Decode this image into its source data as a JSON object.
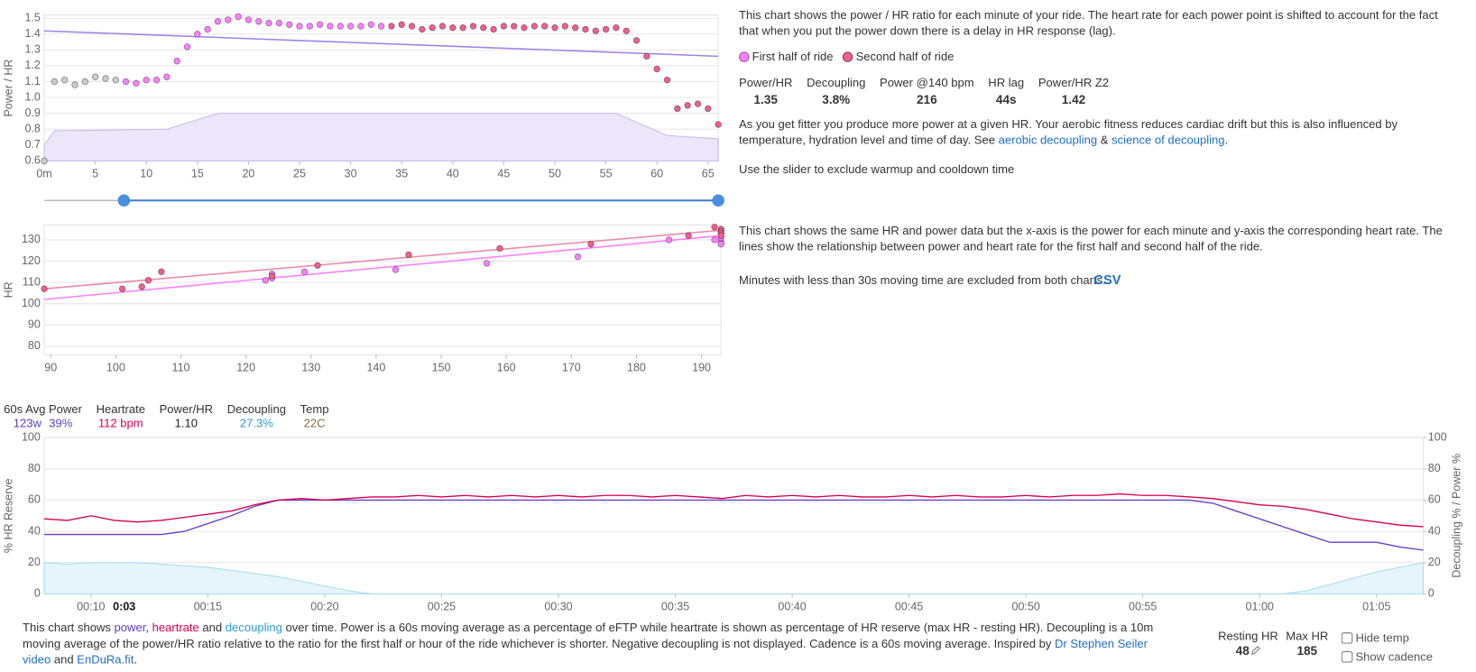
{
  "chart_data": [
    {
      "type": "scatter",
      "ylabel": "Power / HR",
      "xlim": [
        0,
        66
      ],
      "xticks": [
        {
          "value": 0,
          "label": "0m"
        },
        5,
        10,
        15,
        20,
        25,
        30,
        35,
        40,
        45,
        50,
        55,
        60,
        65
      ],
      "ylim": [
        0.6,
        1.52
      ],
      "yticks": [
        0.6,
        0.7,
        0.8,
        0.9,
        {
          "value": 1,
          "label": "1.0"
        },
        1.1,
        1.2,
        1.3,
        1.4,
        1.5
      ],
      "grid": true,
      "series": [
        {
          "color": "#cccccc",
          "x": [
            0,
            1,
            2,
            3,
            4,
            5,
            6,
            7
          ],
          "values": [
            0.6,
            1.1,
            1.11,
            1.08,
            1.1,
            1.13,
            1.12,
            1.11
          ]
        },
        {
          "name": "First half of ride",
          "color": "#ff80ff",
          "x": [
            8,
            9,
            10,
            11,
            12,
            13,
            14,
            15,
            16,
            17,
            18,
            19,
            20,
            21,
            22,
            23,
            24,
            25,
            26,
            27,
            28,
            29,
            30,
            31,
            32,
            33
          ],
          "values": [
            1.1,
            1.09,
            1.11,
            1.11,
            1.13,
            1.23,
            1.32,
            1.4,
            1.43,
            1.48,
            1.49,
            1.51,
            1.49,
            1.48,
            1.47,
            1.47,
            1.46,
            1.45,
            1.45,
            1.46,
            1.45,
            1.45,
            1.45,
            1.45,
            1.46,
            1.45
          ]
        },
        {
          "name": "Second half of ride",
          "color": "#f0608f",
          "x": [
            34,
            35,
            36,
            37,
            38,
            39,
            40,
            41,
            42,
            43,
            44,
            45,
            46,
            47,
            48,
            49,
            50,
            51,
            52,
            53,
            54,
            55,
            56,
            57,
            58,
            59,
            60,
            61,
            62,
            63,
            64,
            65,
            66
          ],
          "values": [
            1.45,
            1.46,
            1.45,
            1.43,
            1.44,
            1.45,
            1.44,
            1.44,
            1.45,
            1.44,
            1.43,
            1.45,
            1.45,
            1.44,
            1.45,
            1.45,
            1.44,
            1.45,
            1.44,
            1.43,
            1.42,
            1.43,
            1.44,
            1.42,
            1.36,
            1.26,
            1.18,
            1.11,
            0.93,
            0.95,
            0.96,
            0.93,
            0.83
          ]
        }
      ],
      "lines": [
        {
          "color": "#9f82e8",
          "x": [
            0,
            66
          ],
          "values": [
            1.42,
            1.26
          ]
        }
      ],
      "areas": [
        {
          "color": "#c9b8ee",
          "fill": "#ece6fa",
          "x": [
            0,
            1,
            12,
            17,
            56,
            61,
            66
          ],
          "values": [
            0.7,
            0.79,
            0.8,
            0.9,
            0.9,
            0.76,
            0.74
          ]
        }
      ],
      "slider": {
        "start": 7.8,
        "end": 66
      }
    },
    {
      "type": "scatter",
      "ylabel": "HR",
      "xlim": [
        89,
        193
      ],
      "xticks": [
        90,
        100,
        110,
        120,
        130,
        140,
        150,
        160,
        170,
        180,
        190
      ],
      "ylim": [
        76,
        137
      ],
      "yticks": [
        80,
        90,
        100,
        110,
        120,
        130
      ],
      "grid": true,
      "series": [
        {
          "color": "#ff80ff",
          "x": [
            123,
            124,
            124,
            129,
            143,
            157,
            171,
            185,
            192,
            193,
            193,
            193
          ],
          "values": [
            111,
            112,
            114,
            115,
            116,
            119,
            122,
            130,
            130,
            129,
            128,
            131
          ]
        },
        {
          "color": "#f0608f",
          "x": [
            89,
            101,
            104,
            105,
            107,
            124,
            131,
            145,
            159,
            173,
            188,
            192,
            193,
            193,
            193,
            193
          ],
          "values": [
            107,
            107,
            108,
            111,
            115,
            113,
            118,
            123,
            126,
            128,
            132,
            136,
            135,
            134,
            133,
            132
          ]
        }
      ],
      "lines": [
        {
          "color": "#ff80ff",
          "x": [
            89,
            193
          ],
          "values": [
            102,
            132
          ]
        },
        {
          "color": "#ec88a8",
          "x": [
            89,
            193
          ],
          "values": [
            107,
            134.5
          ]
        }
      ]
    },
    {
      "type": "line",
      "ylabel": "% HR Reserve",
      "y2label": "Decoupling % / Power %",
      "cursor_label": "0:03",
      "xlim": [
        8,
        67
      ],
      "xticks": [
        {
          "value": 10,
          "label": "00:10"
        },
        {
          "value": 15,
          "label": "00:15"
        },
        {
          "value": 20,
          "label": "00:20"
        },
        {
          "value": 25,
          "label": "00:25"
        },
        {
          "value": 30,
          "label": "00:30"
        },
        {
          "value": 35,
          "label": "00:35"
        },
        {
          "value": 40,
          "label": "00:40"
        },
        {
          "value": 45,
          "label": "00:45"
        },
        {
          "value": 50,
          "label": "00:50"
        },
        {
          "value": 55,
          "label": "00:55"
        },
        {
          "value": 60,
          "label": "01:00"
        },
        {
          "value": 65,
          "label": "01:05"
        }
      ],
      "ylim": [
        0,
        100
      ],
      "yticks": [
        0,
        20,
        40,
        60,
        80,
        100
      ],
      "y2lim": [
        0,
        100
      ],
      "y2ticks": [
        0,
        20,
        40,
        60,
        80,
        100
      ],
      "grid": true,
      "x": [
        8,
        9,
        10,
        11,
        12,
        13,
        14,
        15,
        16,
        17,
        18,
        19,
        20,
        21,
        22,
        23,
        24,
        25,
        26,
        27,
        28,
        29,
        30,
        31,
        32,
        33,
        34,
        35,
        36,
        37,
        38,
        39,
        40,
        41,
        42,
        43,
        44,
        45,
        46,
        47,
        48,
        49,
        50,
        51,
        52,
        53,
        54,
        55,
        56,
        57,
        58,
        59,
        60,
        61,
        62,
        63,
        64,
        65,
        66,
        67
      ],
      "series": [
        {
          "color": "#a6dcef",
          "fill": "#e6f5fb",
          "style": "area",
          "axis": "y2",
          "values": [
            20,
            19,
            20,
            20,
            20,
            19,
            18,
            17,
            15,
            13,
            11,
            8,
            5,
            2,
            0,
            0,
            0,
            0,
            0,
            0,
            0,
            0,
            0,
            0,
            0,
            0,
            0,
            0,
            0,
            0,
            0,
            0,
            0,
            0,
            0,
            0,
            0,
            0,
            0,
            0,
            0,
            0,
            0,
            0,
            0,
            0,
            0,
            0,
            0,
            0,
            0,
            0,
            0,
            0,
            2,
            6,
            10,
            14,
            17,
            20
          ]
        },
        {
          "color": "#6a3fc8",
          "axis": "y2",
          "values": [
            38,
            38,
            38,
            38,
            38,
            38,
            40,
            45,
            50,
            56,
            60,
            60,
            60,
            60,
            60,
            60,
            60,
            60,
            60,
            60,
            60,
            60,
            60,
            60,
            60,
            60,
            60,
            60,
            60,
            60,
            60,
            60,
            60,
            60,
            60,
            60,
            60,
            60,
            60,
            60,
            60,
            60,
            60,
            60,
            60,
            60,
            60,
            60,
            60,
            60,
            58,
            53,
            48,
            43,
            38,
            33,
            33,
            33,
            30,
            28
          ]
        },
        {
          "color": "#d6004f",
          "values": [
            48,
            47,
            50,
            47,
            46,
            47,
            49,
            51,
            53,
            57,
            60,
            61,
            60,
            61,
            62,
            62,
            63,
            62,
            63,
            62,
            63,
            62,
            63,
            62,
            63,
            63,
            62,
            63,
            62,
            61,
            63,
            62,
            63,
            62,
            63,
            62,
            62,
            63,
            62,
            63,
            62,
            62,
            63,
            62,
            63,
            63,
            64,
            63,
            63,
            62,
            61,
            59,
            57,
            56,
            54,
            51,
            48,
            46,
            44,
            43
          ]
        }
      ]
    }
  ],
  "panel1": {
    "intro": "This chart shows the power / HR ratio for each minute of your ride. The heart rate for each power point is shifted to account for the fact that when you put the power down there is a delay in HR response (lag).",
    "stats": [
      {
        "label": "Power/HR",
        "value": "1.35"
      },
      {
        "label": "Decoupling",
        "value": "3.8%"
      },
      {
        "label": "Power @140 bpm",
        "value": "216"
      },
      {
        "label": "HR lag",
        "value": "44s"
      },
      {
        "label": "Power/HR Z2",
        "value": "1.42"
      }
    ],
    "fitness": [
      "As you get fitter you produce more power at a given HR. Your aerobic fitness reduces cardiac drift but this is also influenced by temperature, hydration level and time of day. See ",
      "aerobic decoupling",
      " & ",
      "science of decoupling",
      "."
    ],
    "slider_hint": "Use the slider to exclude warmup and cooldown time"
  },
  "panel2": {
    "intro": "This chart shows the same HR and power data but the x-axis is the power for each minute and y-axis the corresponding heart rate. The lines show the relationship between power and heart rate for the first half and second half of the ride.",
    "note": "Minutes with less than 30s moving time are excluded from both charts.",
    "csv": "CSV"
  },
  "stats_bar": {
    "power": {
      "label": "60s Avg Power",
      "watts": "123w",
      "percent": "39%"
    },
    "heartrate": {
      "label": "Heartrate",
      "value": "112 bpm"
    },
    "power_hr": {
      "label": "Power/HR",
      "value": "1.10"
    },
    "decoupling": {
      "label": "Decoupling",
      "value": "27.3%"
    },
    "temp": {
      "label": "Temp",
      "value": "22C"
    }
  },
  "footer": [
    "This chart shows ",
    "power",
    ", ",
    "heartrate",
    " and ",
    "decoupling",
    " over time. Power is a 60s moving average as a percentage of eFTP while heartrate is shown as percentage of HR reserve (max HR - resting HR). Decoupling is a 10m moving average of the power/HR ratio relative to the ratio for the first half or hour of the ride whichever is shorter. Negative decoupling is not displayed. Cadence is a 60s moving average. Inspired by ",
    "Dr Stephen Seiler video",
    " and ",
    "EnDuRa.fit",
    "."
  ],
  "settings": {
    "resting_hr": {
      "label": "Resting HR",
      "value": "48"
    },
    "max_hr": {
      "label": "Max HR",
      "value": "185"
    },
    "hide_temp": "Hide temp",
    "show_cadence": "Show cadence"
  }
}
